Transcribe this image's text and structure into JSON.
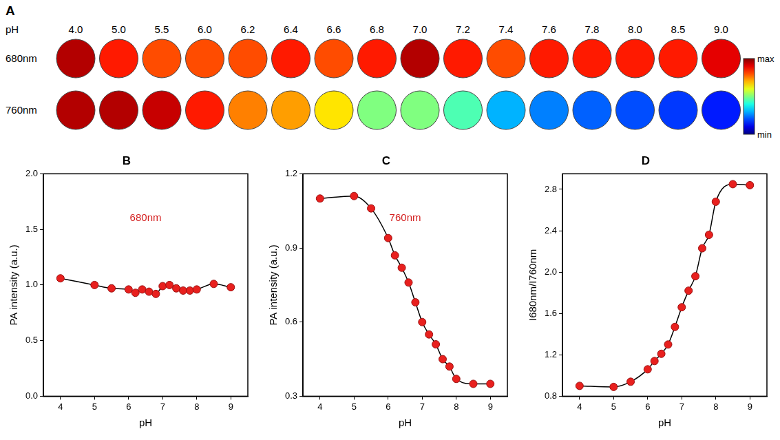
{
  "chart_data": [
    {
      "type": "heatmap",
      "panel": "A",
      "x_label": "pH",
      "categories": [
        "4.0",
        "5.0",
        "5.5",
        "6.0",
        "6.2",
        "6.4",
        "6.6",
        "6.8",
        "7.0",
        "7.2",
        "7.4",
        "7.6",
        "7.8",
        "8.0",
        "8.5",
        "9.0"
      ],
      "rows": [
        "680nm",
        "760nm"
      ],
      "cells": [
        [
          0.95,
          0.85,
          0.8,
          0.8,
          0.8,
          0.85,
          0.8,
          0.85,
          0.95,
          0.85,
          0.8,
          0.85,
          0.85,
          0.85,
          0.85,
          0.9
        ],
        [
          0.95,
          0.95,
          0.93,
          0.85,
          0.75,
          0.72,
          0.65,
          0.5,
          0.5,
          0.45,
          0.3,
          0.25,
          0.22,
          0.2,
          0.18,
          0.15
        ]
      ],
      "colorbar": {
        "range": [
          0,
          1
        ],
        "ticks": [
          {
            "value": 1,
            "label": "max"
          },
          {
            "value": 0,
            "label": "min"
          }
        ]
      }
    },
    {
      "type": "line",
      "panel": "B",
      "annotation": "680nm",
      "x_label": "pH",
      "y_label": "PA intensity (a.u.)",
      "x": [
        4,
        5,
        5.5,
        6,
        6.2,
        6.4,
        6.6,
        6.8,
        7.0,
        7.2,
        7.4,
        7.6,
        7.8,
        8.0,
        8.5,
        9.0
      ],
      "values": [
        1.06,
        1.0,
        0.97,
        0.96,
        0.93,
        0.96,
        0.94,
        0.92,
        0.99,
        1.0,
        0.97,
        0.95,
        0.95,
        0.96,
        1.01,
        0.98
      ],
      "color": "#e8201e",
      "marker": "circle",
      "grid": false,
      "xlim": [
        3.5,
        9.5
      ],
      "xticks": [
        4,
        5,
        6,
        7,
        8,
        9
      ],
      "ylim": [
        0,
        2.0
      ],
      "yticks": [
        {
          "value": 0,
          "label": "0.0"
        },
        0.5,
        {
          "value": 1,
          "label": "1.0"
        },
        1.5,
        {
          "value": 2,
          "label": "2.0"
        }
      ]
    },
    {
      "type": "line",
      "panel": "C",
      "annotation": "760nm",
      "x_label": "pH",
      "y_label": "PA intensity (a.u.)",
      "x": [
        4,
        5,
        5.5,
        6,
        6.2,
        6.4,
        6.6,
        6.8,
        7.0,
        7.2,
        7.4,
        7.6,
        7.8,
        8.0,
        8.5,
        9.0
      ],
      "values": [
        1.1,
        1.11,
        1.06,
        0.94,
        0.87,
        0.82,
        0.76,
        0.68,
        0.6,
        0.55,
        0.51,
        0.45,
        0.42,
        0.37,
        0.35,
        0.35
      ],
      "color": "#e8201e",
      "marker": "circle",
      "grid": false,
      "xlim": [
        3.5,
        9.5
      ],
      "xticks": [
        4,
        5,
        6,
        7,
        8,
        9
      ],
      "ylim": [
        0.3,
        1.2
      ],
      "yticks": [
        0.3,
        0.6,
        0.9,
        1.2
      ]
    },
    {
      "type": "line",
      "panel": "D",
      "x_label": "pH",
      "y_label": "I680nm/I760nm",
      "x": [
        4,
        5,
        5.5,
        6,
        6.2,
        6.4,
        6.6,
        6.8,
        7.0,
        7.2,
        7.4,
        7.6,
        7.8,
        8.0,
        8.5,
        9.0
      ],
      "values": [
        0.9,
        0.89,
        0.94,
        1.06,
        1.14,
        1.21,
        1.3,
        1.47,
        1.66,
        1.82,
        1.96,
        2.23,
        2.36,
        2.68,
        2.85,
        2.84
      ],
      "color": "#e8201e",
      "marker": "circle",
      "grid": false,
      "xlim": [
        3.5,
        9.5
      ],
      "xticks": [
        4,
        5,
        6,
        7,
        8,
        9
      ],
      "ylim": [
        0.8,
        2.95
      ],
      "yticks": [
        0.8,
        1.2,
        1.6,
        {
          "value": 2.0,
          "label": "2.0"
        },
        2.4,
        2.8
      ]
    }
  ]
}
